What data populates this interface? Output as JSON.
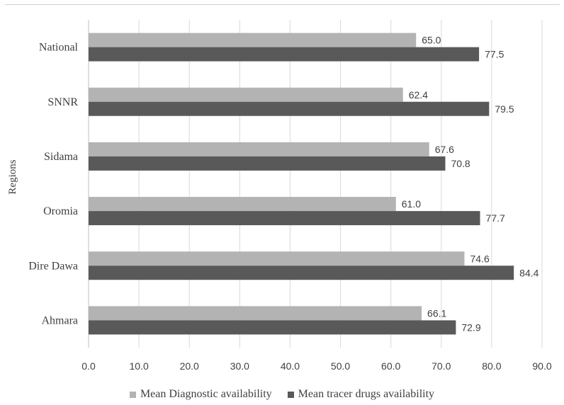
{
  "chart_data": {
    "type": "bar",
    "orientation": "horizontal",
    "categories": [
      "National",
      "SNNR",
      "Sidama",
      "Oromia",
      "Dire Dawa",
      "Ahmara"
    ],
    "series": [
      {
        "name": "Mean Diagnostic availability",
        "color": "#b3b3b3",
        "values": [
          65.0,
          62.4,
          67.6,
          61.0,
          74.6,
          66.1
        ],
        "labels": [
          "65.0",
          "62.4",
          "67.6",
          "61.0",
          "74.6",
          "66.1"
        ]
      },
      {
        "name": "Mean tracer drugs availability",
        "color": "#595959",
        "values": [
          77.5,
          79.5,
          70.8,
          77.7,
          84.4,
          72.9
        ],
        "labels": [
          "77.5",
          "79.5",
          "70.8",
          "77.7",
          "84.4",
          "72.9"
        ]
      }
    ],
    "xticks": [
      "0.0",
      "10.0",
      "20.0",
      "30.0",
      "40.0",
      "50.0",
      "60.0",
      "70.0",
      "80.0",
      "90.0"
    ],
    "xlim": [
      0,
      90
    ],
    "ylabel": "Regions",
    "xlabel": "",
    "grid": "vertical",
    "legend_position": "bottom"
  }
}
